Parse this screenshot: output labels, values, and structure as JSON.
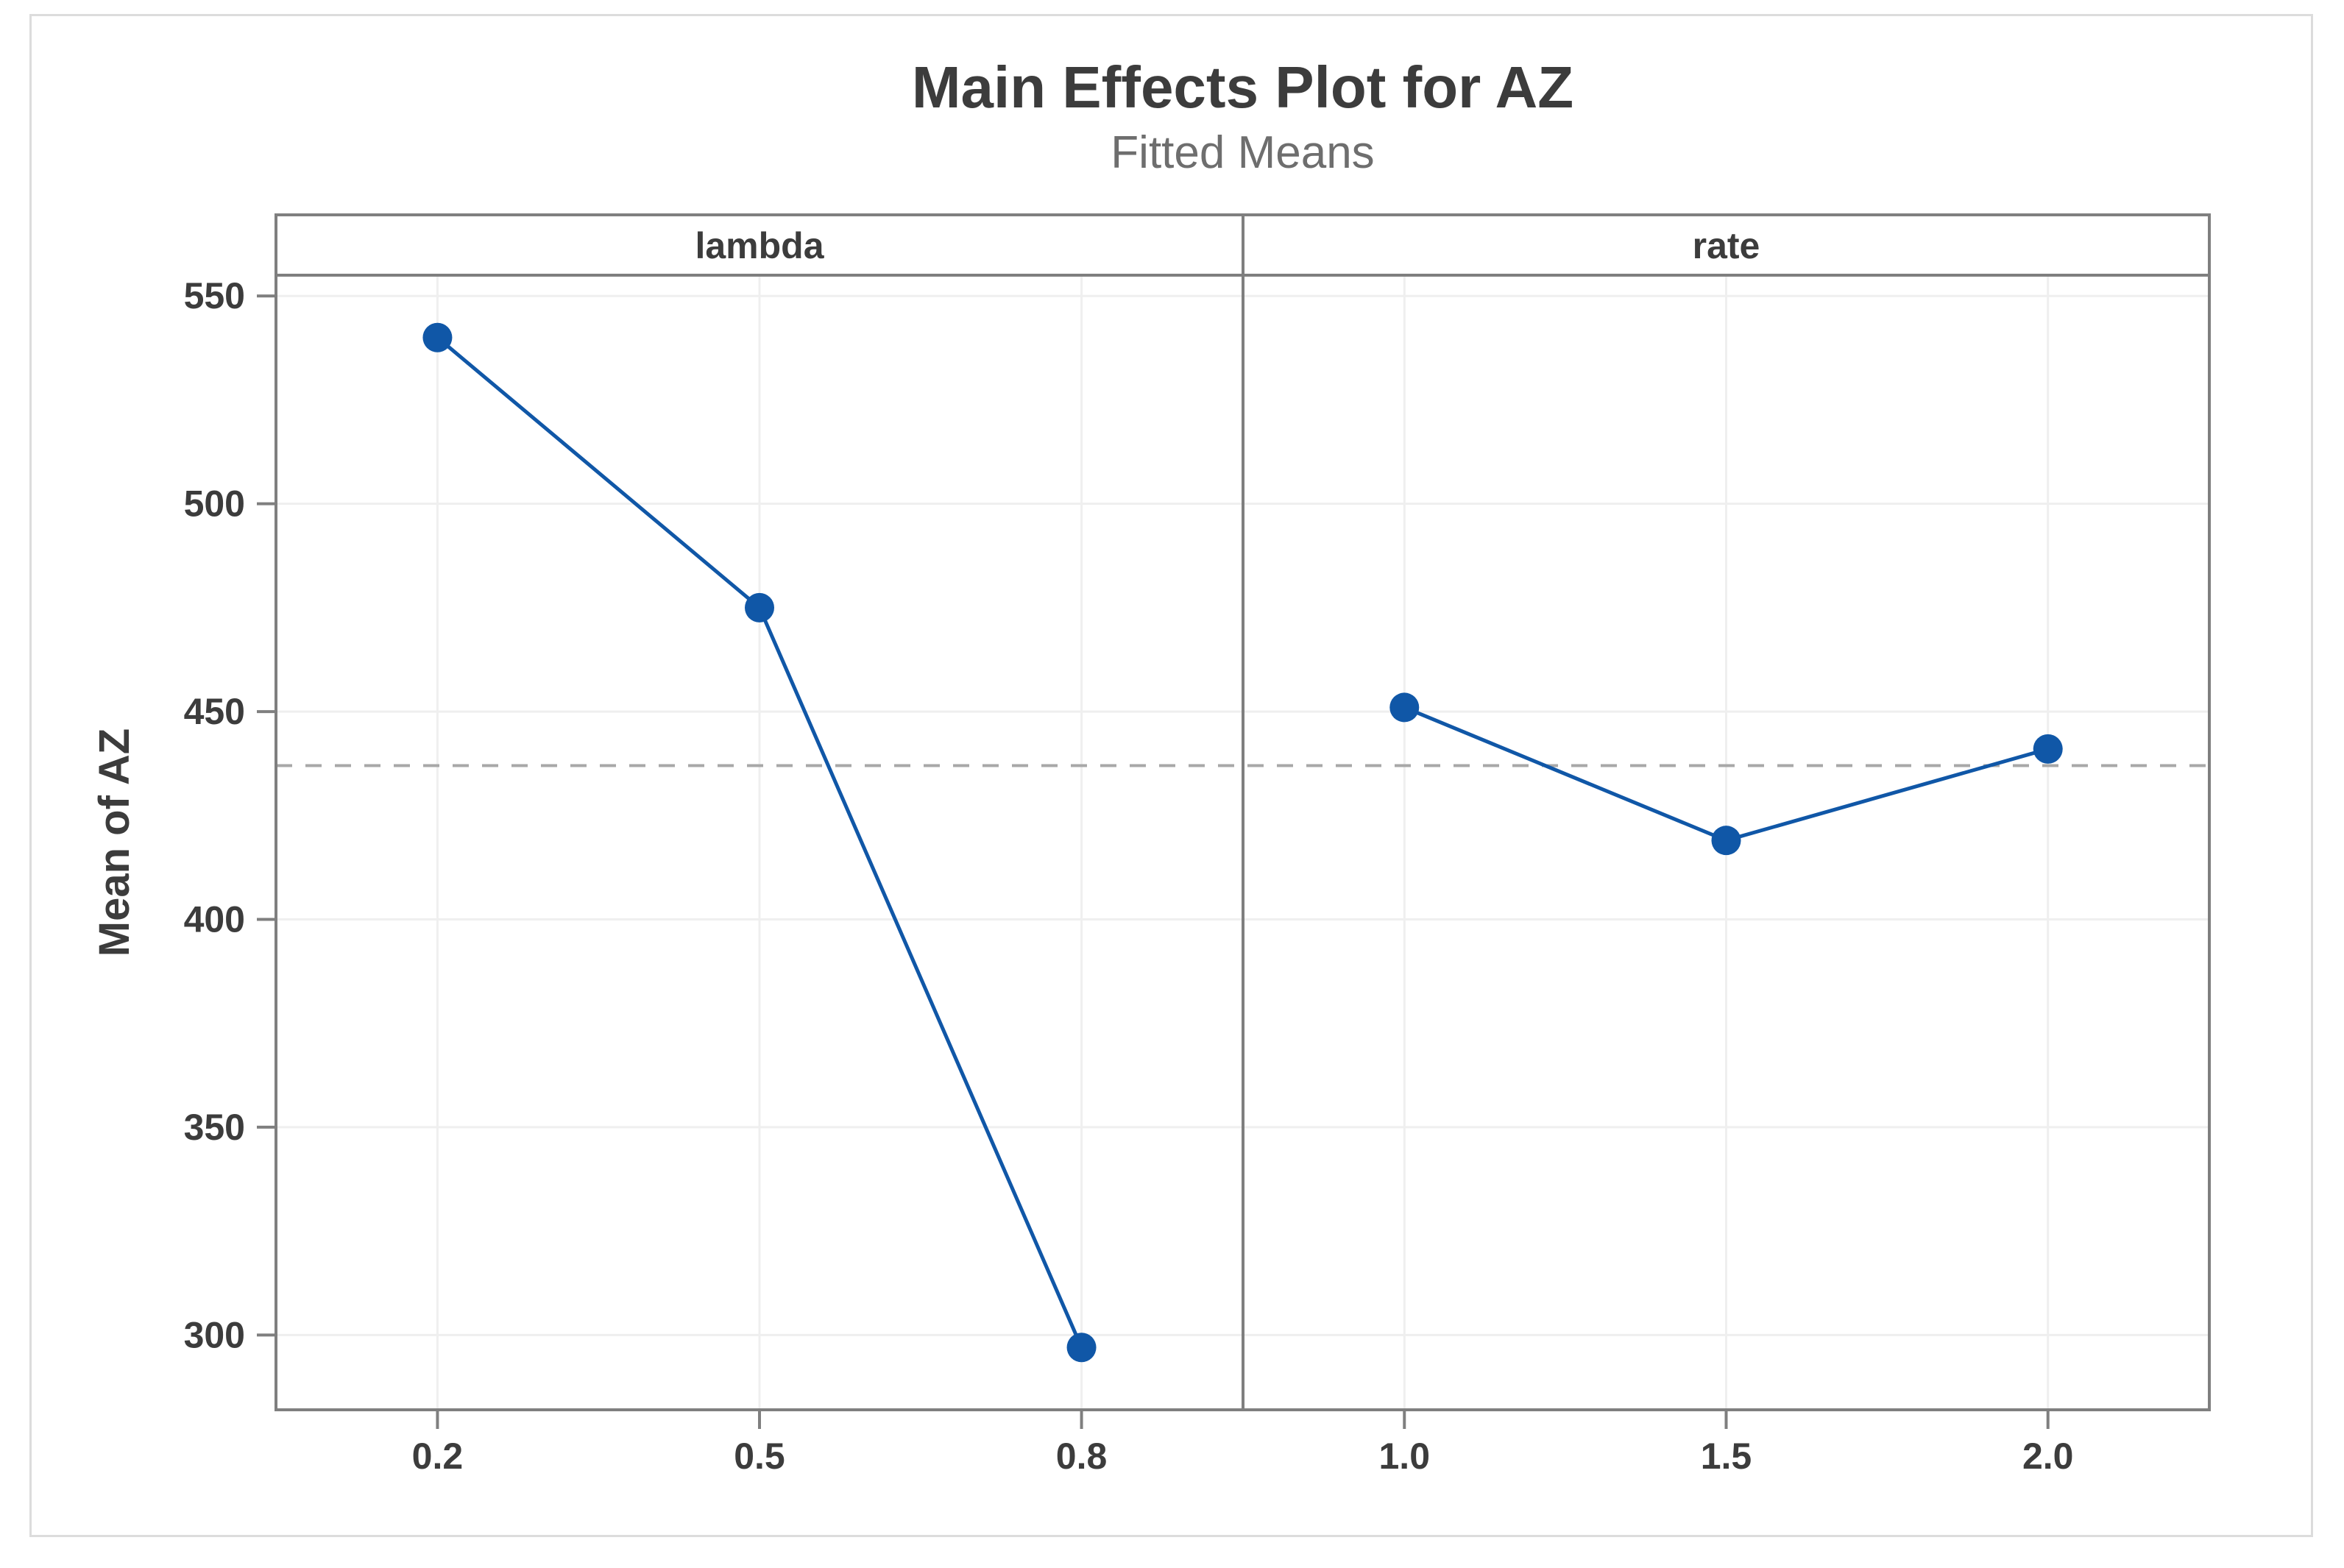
{
  "figure": {
    "title": "Main Effects Plot for AZ",
    "subtitle": "Fitted Means"
  },
  "chart_data": {
    "type": "line",
    "title": "Main Effects Plot for AZ",
    "subtitle": "Fitted Means",
    "ylabel": "Mean of AZ",
    "ylim": [
      282,
      555
    ],
    "yticks": [
      550,
      500,
      450,
      400,
      350,
      300
    ],
    "grid": true,
    "legend": "none",
    "grand_mean_reference": 437,
    "panels": [
      {
        "label": "lambda",
        "categories": [
          "0.2",
          "0.5",
          "0.8"
        ],
        "values": [
          540,
          475,
          297
        ]
      },
      {
        "label": "rate",
        "categories": [
          "1.0",
          "1.5",
          "2.0"
        ],
        "values": [
          451,
          419,
          441
        ]
      }
    ]
  },
  "colors": {
    "series_blue": "#1057a7",
    "axis_gray": "#7f7f7f",
    "grid_gray": "#efefef",
    "reference_dash_gray": "#a8a8a8",
    "text_dark": "#3c3c3c",
    "subtitle_gray": "#6e6e6e",
    "figure_border_gray": "#dcdcdc"
  }
}
